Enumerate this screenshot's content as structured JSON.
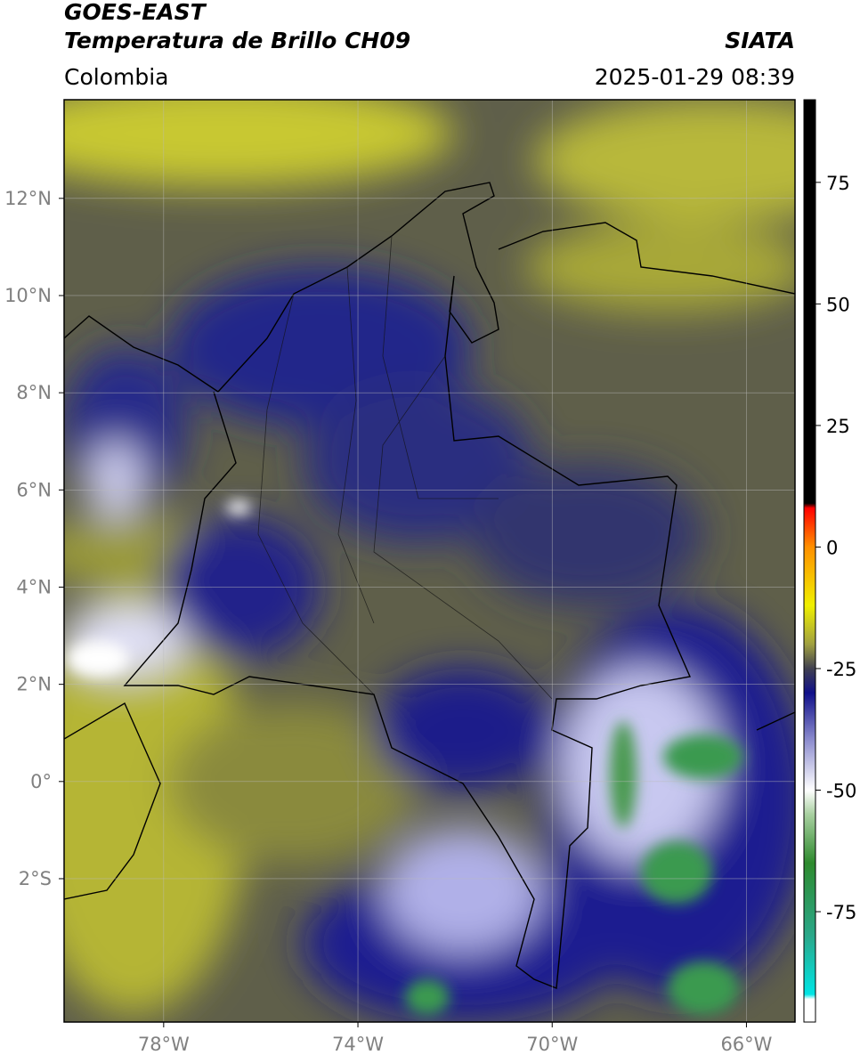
{
  "header": {
    "title": "GOES-EAST",
    "subtitle": "Temperatura de Brillo CH09",
    "region": "Colombia",
    "source": "SIATA",
    "datetime": "2025-01-29 08:39"
  },
  "map": {
    "xlim": [
      -80.05,
      -65
    ],
    "ylim": [
      -4.95,
      14.03
    ],
    "xticks": [
      {
        "value": -78,
        "label": "78°W"
      },
      {
        "value": -74,
        "label": "74°W"
      },
      {
        "value": -70,
        "label": "70°W"
      },
      {
        "value": -66,
        "label": "66°W"
      }
    ],
    "yticks": [
      {
        "value": 12,
        "label": "12°N"
      },
      {
        "value": 10,
        "label": "10°N"
      },
      {
        "value": 8,
        "label": "8°N"
      },
      {
        "value": 6,
        "label": "6°N"
      },
      {
        "value": 4,
        "label": "4°N"
      },
      {
        "value": 2,
        "label": "2°N"
      },
      {
        "value": 0,
        "label": "0°"
      },
      {
        "value": -2,
        "label": "2°S"
      }
    ],
    "grid": true
  },
  "colorbar": {
    "lim": [
      -97.7,
      92
    ],
    "ticks": [
      75,
      50,
      25,
      0,
      -25,
      -50,
      -75
    ],
    "colormap": [
      [
        -97.7,
        "#ffffff"
      ],
      [
        -93,
        "#ffffff"
      ],
      [
        -92,
        "#00e5e5"
      ],
      [
        -80,
        "#2aa88a"
      ],
      [
        -65,
        "#2e8a2e"
      ],
      [
        -55,
        "#a8d0a0"
      ],
      [
        -50,
        "#ffffff"
      ],
      [
        -40,
        "#9090d0"
      ],
      [
        -30,
        "#10108a"
      ],
      [
        -25,
        "#404050"
      ],
      [
        -20,
        "#a0a040"
      ],
      [
        -12,
        "#f0f000"
      ],
      [
        0,
        "#ff9000"
      ],
      [
        8,
        "#ff0000"
      ],
      [
        9,
        "#000000"
      ],
      [
        92,
        "#000000"
      ]
    ]
  }
}
